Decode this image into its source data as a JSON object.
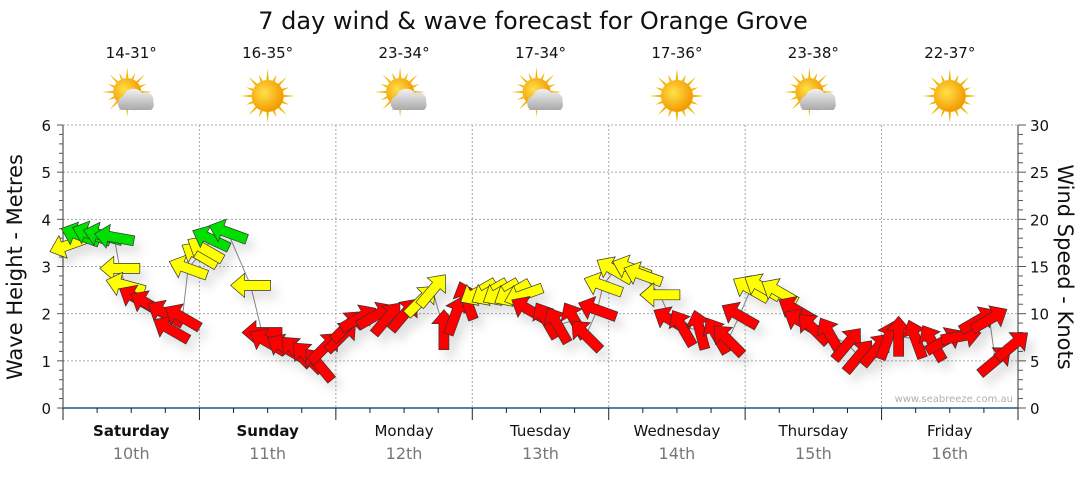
{
  "chart_data": {
    "type": "scatter",
    "title": "7 day wind & wave forecast for Orange Grove",
    "ylabel": "Wave Height - Metres",
    "y2label": "Wind Speed - Knots",
    "ylim": [
      0,
      6
    ],
    "y2lim": [
      0,
      30
    ],
    "yticks": [
      "0",
      "1",
      "2",
      "3",
      "4",
      "5",
      "6"
    ],
    "y2ticks": [
      "0",
      "5",
      "10",
      "15",
      "20",
      "25",
      "30"
    ],
    "grid": true,
    "watermark": "www.seabreeze.com.au",
    "days": [
      {
        "day": "Saturday",
        "date": "10th",
        "temp": "14-31°",
        "icon": "sun-cloud-icon",
        "bold": true
      },
      {
        "day": "Sunday",
        "date": "11th",
        "temp": "16-35°",
        "icon": "sun-icon",
        "bold": true
      },
      {
        "day": "Monday",
        "date": "12th",
        "temp": "23-34°",
        "icon": "sun-cloud-icon",
        "bold": false
      },
      {
        "day": "Tuesday",
        "date": "13th",
        "temp": "17-34°",
        "icon": "sun-cloud-icon",
        "bold": false
      },
      {
        "day": "Wednesday",
        "date": "14th",
        "temp": "17-36°",
        "icon": "sun-icon",
        "bold": false
      },
      {
        "day": "Thursday",
        "date": "15th",
        "temp": "23-38°",
        "icon": "sun-cloud-icon",
        "bold": false
      },
      {
        "day": "Friday",
        "date": "16th",
        "temp": "22-37°",
        "icon": "sun-icon",
        "bold": false
      }
    ],
    "colors": {
      "green": "#00e000",
      "yellow": "#ffff00",
      "red": "#ff0000"
    },
    "wind_series_columns": [
      "hour",
      "knots",
      "direction_deg",
      "color"
    ],
    "wind_series": [
      [
        1,
        17.3,
        250,
        "yellow"
      ],
      [
        3,
        18.3,
        290,
        "green"
      ],
      [
        5,
        18.4,
        290,
        "green"
      ],
      [
        7,
        18.3,
        285,
        "green"
      ],
      [
        9,
        18.1,
        280,
        "green"
      ],
      [
        10,
        14.8,
        270,
        "yellow"
      ],
      [
        11,
        13.0,
        285,
        "yellow"
      ],
      [
        13,
        11.6,
        300,
        "red"
      ],
      [
        15,
        11.0,
        300,
        "red"
      ],
      [
        18,
        10.0,
        300,
        "red"
      ],
      [
        19,
        8.3,
        300,
        "red"
      ],
      [
        21,
        9.6,
        300,
        "red"
      ],
      [
        22,
        14.8,
        290,
        "yellow"
      ],
      [
        24,
        16.2,
        300,
        "yellow"
      ],
      [
        25,
        16.8,
        300,
        "yellow"
      ],
      [
        26,
        17.9,
        295,
        "green"
      ],
      [
        29,
        18.6,
        290,
        "green"
      ],
      [
        33,
        13.0,
        270,
        "yellow"
      ],
      [
        35,
        8.0,
        270,
        "red"
      ],
      [
        36,
        7.0,
        300,
        "red"
      ],
      [
        39,
        6.4,
        300,
        "red"
      ],
      [
        41,
        6.0,
        315,
        "red"
      ],
      [
        43,
        5.4,
        315,
        "red"
      ],
      [
        45,
        4.6,
        320,
        "red"
      ],
      [
        46,
        6.4,
        45,
        "red"
      ],
      [
        49,
        7.6,
        45,
        "red"
      ],
      [
        50,
        8.7,
        45,
        "red"
      ],
      [
        52,
        9.5,
        60,
        "red"
      ],
      [
        55,
        9.8,
        60,
        "red"
      ],
      [
        57,
        9.5,
        40,
        "red"
      ],
      [
        60,
        9.9,
        40,
        "red"
      ],
      [
        63,
        11.4,
        45,
        "yellow"
      ],
      [
        65,
        12.5,
        40,
        "yellow"
      ],
      [
        67,
        8.3,
        0,
        "red"
      ],
      [
        69,
        9.8,
        20,
        "red"
      ],
      [
        71,
        11.4,
        340,
        "red"
      ],
      [
        73,
        12.3,
        240,
        "yellow"
      ],
      [
        75,
        12.3,
        240,
        "yellow"
      ],
      [
        77,
        12.3,
        240,
        "yellow"
      ],
      [
        79,
        12.2,
        240,
        "yellow"
      ],
      [
        81,
        12.0,
        250,
        "yellow"
      ],
      [
        82,
        10.4,
        300,
        "red"
      ],
      [
        85,
        9.3,
        330,
        "red"
      ],
      [
        87,
        8.8,
        330,
        "red"
      ],
      [
        90,
        9.3,
        330,
        "red"
      ],
      [
        92,
        7.7,
        315,
        "red"
      ],
      [
        94,
        10.4,
        290,
        "red"
      ],
      [
        95,
        13.0,
        290,
        "yellow"
      ],
      [
        97,
        14.6,
        300,
        "yellow"
      ],
      [
        100,
        14.8,
        290,
        "yellow"
      ],
      [
        102,
        14.1,
        290,
        "yellow"
      ],
      [
        105,
        12.0,
        270,
        "yellow"
      ],
      [
        107,
        9.3,
        300,
        "red"
      ],
      [
        109,
        8.5,
        330,
        "red"
      ],
      [
        112,
        8.3,
        345,
        "red"
      ],
      [
        115,
        7.7,
        330,
        "red"
      ],
      [
        117,
        7.2,
        315,
        "red"
      ],
      [
        119,
        9.8,
        300,
        "red"
      ],
      [
        121,
        12.6,
        300,
        "yellow"
      ],
      [
        123,
        12.8,
        300,
        "yellow"
      ],
      [
        126,
        12.3,
        300,
        "yellow"
      ],
      [
        129,
        10.4,
        300,
        "red"
      ],
      [
        130,
        9.1,
        300,
        "red"
      ],
      [
        132,
        8.4,
        315,
        "red"
      ],
      [
        135,
        7.7,
        330,
        "red"
      ],
      [
        138,
        6.8,
        40,
        "red"
      ],
      [
        140,
        5.5,
        40,
        "red"
      ],
      [
        143,
        6.2,
        40,
        "red"
      ],
      [
        145,
        7.2,
        20,
        "red"
      ],
      [
        147,
        7.6,
        0,
        "red"
      ],
      [
        150,
        7.3,
        340,
        "red"
      ],
      [
        153,
        6.9,
        330,
        "red"
      ],
      [
        155,
        7.1,
        60,
        "red"
      ],
      [
        158,
        7.6,
        80,
        "red"
      ],
      [
        161,
        9.3,
        60,
        "red"
      ],
      [
        163,
        9.4,
        60,
        "red"
      ],
      [
        164,
        5.0,
        50,
        "red"
      ],
      [
        167,
        6.6,
        50,
        "red"
      ]
    ]
  }
}
